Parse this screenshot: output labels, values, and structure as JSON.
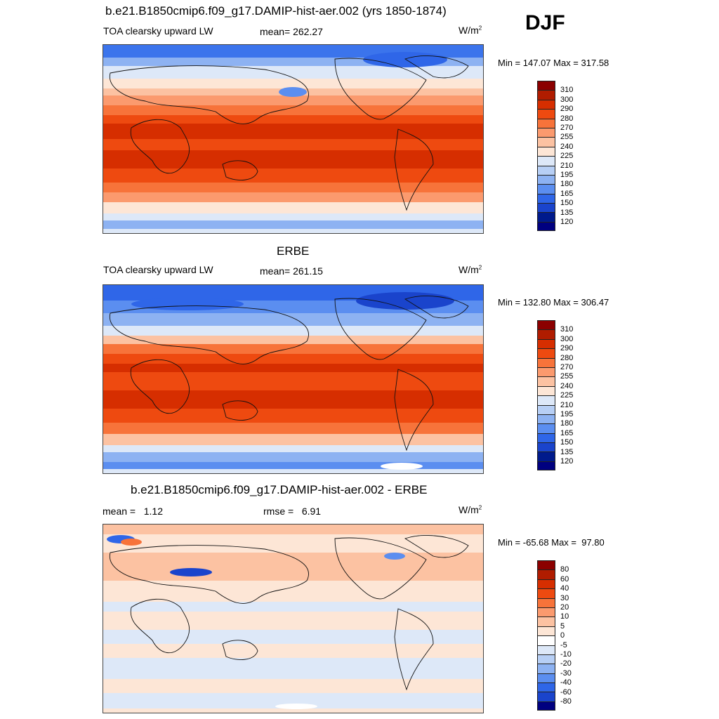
{
  "season": "DJF",
  "panels": [
    {
      "title": "b.e21.B1850cmip6.f09_g17.DAMIP-hist-aer.002 (yrs 1850-1874)",
      "left_label": "TOA clearsky upward LW",
      "center_label": "mean= 262.27",
      "units_base": "W/m",
      "units_sup": "2",
      "minmax": "Min = 147.07 Max = 317.58",
      "colorbar": {
        "labels": [
          "310",
          "300",
          "290",
          "280",
          "270",
          "255",
          "240",
          "225",
          "210",
          "195",
          "180",
          "165",
          "150",
          "135",
          "120"
        ],
        "colors": [
          "#8b0000",
          "#b01c00",
          "#d62e00",
          "#ee4a10",
          "#f7733a",
          "#fb9a6e",
          "#fcc2a2",
          "#fde6d6",
          "#dde8f8",
          "#b7cff5",
          "#8db2f2",
          "#5b8ef0",
          "#2f66e8",
          "#1a44cc",
          "#001a8c",
          "#000080"
        ]
      },
      "map_mode": "abs",
      "map_variant": "model"
    },
    {
      "title": "ERBE",
      "left_label": "TOA clearsky upward LW",
      "center_label": "mean= 261.15",
      "units_base": "W/m",
      "units_sup": "2",
      "minmax": "Min = 132.80 Max = 306.47",
      "colorbar": {
        "labels": [
          "310",
          "300",
          "290",
          "280",
          "270",
          "255",
          "240",
          "225",
          "210",
          "195",
          "180",
          "165",
          "150",
          "135",
          "120"
        ],
        "colors": [
          "#8b0000",
          "#b01c00",
          "#d62e00",
          "#ee4a10",
          "#f7733a",
          "#fb9a6e",
          "#fcc2a2",
          "#fde6d6",
          "#dde8f8",
          "#b7cff5",
          "#8db2f2",
          "#5b8ef0",
          "#2f66e8",
          "#1a44cc",
          "#001a8c",
          "#000080"
        ]
      },
      "map_mode": "abs",
      "map_variant": "obs"
    },
    {
      "title": "b.e21.B1850cmip6.f09_g17.DAMIP-hist-aer.002 - ERBE",
      "left_label": "mean =   1.12",
      "center_label": "rmse =   6.91",
      "units_base": "W/m",
      "units_sup": "2",
      "minmax": "Min = -65.68 Max =  97.80",
      "colorbar": {
        "labels": [
          "80",
          "60",
          "40",
          "30",
          "20",
          "10",
          "5",
          "0",
          "-5",
          "-10",
          "-20",
          "-30",
          "-40",
          "-60",
          "-80"
        ],
        "colors": [
          "#8b0000",
          "#b01c00",
          "#d62e00",
          "#ee4a10",
          "#f7733a",
          "#fb9a6e",
          "#fcc2a2",
          "#fde6d6",
          "#ffffff",
          "#dde8f8",
          "#b7cff5",
          "#8db2f2",
          "#5b8ef0",
          "#2f66e8",
          "#1a44cc",
          "#000080"
        ]
      },
      "map_mode": "diff",
      "map_variant": "diff"
    }
  ]
}
